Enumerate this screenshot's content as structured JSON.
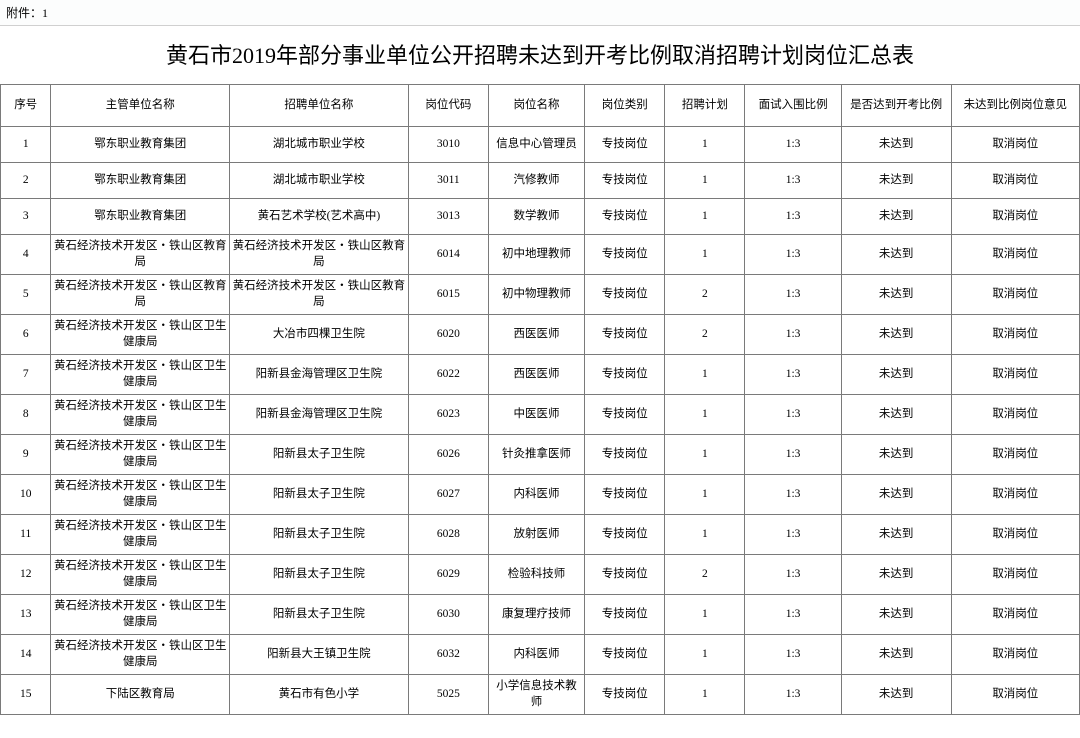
{
  "attachment": "附件：1",
  "title": "黄石市2019年部分事业单位公开招聘未达到开考比例取消招聘计划岗位汇总表",
  "columns": [
    "序号",
    "主管单位名称",
    "招聘单位名称",
    "岗位代码",
    "岗位名称",
    "岗位类别",
    "招聘计划",
    "面试入围比例",
    "是否达到开考比例",
    "未达到比例岗位意见"
  ],
  "rows": [
    [
      "1",
      "鄂东职业教育集团",
      "湖北城市职业学校",
      "3010",
      "信息中心管理员",
      "专技岗位",
      "1",
      "1:3",
      "未达到",
      "取消岗位"
    ],
    [
      "2",
      "鄂东职业教育集团",
      "湖北城市职业学校",
      "3011",
      "汽修教师",
      "专技岗位",
      "1",
      "1:3",
      "未达到",
      "取消岗位"
    ],
    [
      "3",
      "鄂东职业教育集团",
      "黄石艺术学校(艺术高中)",
      "3013",
      "数学教师",
      "专技岗位",
      "1",
      "1:3",
      "未达到",
      "取消岗位"
    ],
    [
      "4",
      "黄石经济技术开发区・铁山区教育局",
      "黄石经济技术开发区・铁山区教育局",
      "6014",
      "初中地理教师",
      "专技岗位",
      "1",
      "1:3",
      "未达到",
      "取消岗位"
    ],
    [
      "5",
      "黄石经济技术开发区・铁山区教育局",
      "黄石经济技术开发区・铁山区教育局",
      "6015",
      "初中物理教师",
      "专技岗位",
      "2",
      "1:3",
      "未达到",
      "取消岗位"
    ],
    [
      "6",
      "黄石经济技术开发区・铁山区卫生健康局",
      "大冶市四棵卫生院",
      "6020",
      "西医医师",
      "专技岗位",
      "2",
      "1:3",
      "未达到",
      "取消岗位"
    ],
    [
      "7",
      "黄石经济技术开发区・铁山区卫生健康局",
      "阳新县金海管理区卫生院",
      "6022",
      "西医医师",
      "专技岗位",
      "1",
      "1:3",
      "未达到",
      "取消岗位"
    ],
    [
      "8",
      "黄石经济技术开发区・铁山区卫生健康局",
      "阳新县金海管理区卫生院",
      "6023",
      "中医医师",
      "专技岗位",
      "1",
      "1:3",
      "未达到",
      "取消岗位"
    ],
    [
      "9",
      "黄石经济技术开发区・铁山区卫生健康局",
      "阳新县太子卫生院",
      "6026",
      "针灸推拿医师",
      "专技岗位",
      "1",
      "1:3",
      "未达到",
      "取消岗位"
    ],
    [
      "10",
      "黄石经济技术开发区・铁山区卫生健康局",
      "阳新县太子卫生院",
      "6027",
      "内科医师",
      "专技岗位",
      "1",
      "1:3",
      "未达到",
      "取消岗位"
    ],
    [
      "11",
      "黄石经济技术开发区・铁山区卫生健康局",
      "阳新县太子卫生院",
      "6028",
      "放射医师",
      "专技岗位",
      "1",
      "1:3",
      "未达到",
      "取消岗位"
    ],
    [
      "12",
      "黄石经济技术开发区・铁山区卫生健康局",
      "阳新县太子卫生院",
      "6029",
      "检验科技师",
      "专技岗位",
      "2",
      "1:3",
      "未达到",
      "取消岗位"
    ],
    [
      "13",
      "黄石经济技术开发区・铁山区卫生健康局",
      "阳新县太子卫生院",
      "6030",
      "康复理疗技师",
      "专技岗位",
      "1",
      "1:3",
      "未达到",
      "取消岗位"
    ],
    [
      "14",
      "黄石经济技术开发区・铁山区卫生健康局",
      "阳新县大王镇卫生院",
      "6032",
      "内科医师",
      "专技岗位",
      "1",
      "1:3",
      "未达到",
      "取消岗位"
    ],
    [
      "15",
      "下陆区教育局",
      "黄石市有色小学",
      "5025",
      "小学信息技术教师",
      "专技岗位",
      "1",
      "1:3",
      "未达到",
      "取消岗位"
    ]
  ]
}
